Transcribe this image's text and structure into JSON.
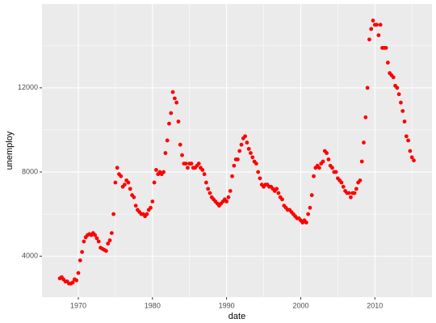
{
  "chart_data": {
    "type": "scatter",
    "x_label": "date",
    "y_label": "unemploy",
    "color": "#ff0000",
    "grid": true,
    "xlim": [
      1965.1,
      2017.7
    ],
    "ylim": [
      2052,
      15985
    ],
    "xticks": [
      1970,
      1980,
      1990,
      2000,
      2010
    ],
    "yticks": [
      4000,
      8000,
      12000
    ],
    "x": [
      1967.5,
      1967.75,
      1968,
      1968.25,
      1968.5,
      1968.75,
      1969,
      1969.25,
      1969.5,
      1969.75,
      1970,
      1970.25,
      1970.5,
      1970.75,
      1971,
      1971.25,
      1971.5,
      1971.75,
      1972,
      1972.25,
      1972.5,
      1972.75,
      1973,
      1973.25,
      1973.5,
      1973.75,
      1974,
      1974.25,
      1974.5,
      1974.75,
      1975,
      1975.25,
      1975.5,
      1975.75,
      1976,
      1976.25,
      1976.5,
      1976.75,
      1977,
      1977.25,
      1977.5,
      1977.75,
      1978,
      1978.25,
      1978.5,
      1978.75,
      1979,
      1979.25,
      1979.5,
      1979.75,
      1980,
      1980.25,
      1980.5,
      1980.75,
      1981,
      1981.25,
      1981.5,
      1981.75,
      1982,
      1982.25,
      1982.5,
      1982.75,
      1983,
      1983.25,
      1983.5,
      1983.75,
      1984,
      1984.25,
      1984.5,
      1984.75,
      1985,
      1985.25,
      1985.5,
      1985.75,
      1986,
      1986.25,
      1986.5,
      1986.75,
      1987,
      1987.25,
      1987.5,
      1987.75,
      1988,
      1988.25,
      1988.5,
      1988.75,
      1989,
      1989.25,
      1989.5,
      1989.75,
      1990,
      1990.25,
      1990.5,
      1990.75,
      1991,
      1991.25,
      1991.5,
      1991.75,
      1992,
      1992.25,
      1992.5,
      1992.75,
      1993,
      1993.25,
      1993.5,
      1993.75,
      1994,
      1994.25,
      1994.5,
      1994.75,
      1995,
      1995.25,
      1995.5,
      1995.75,
      1996,
      1996.25,
      1996.5,
      1996.75,
      1997,
      1997.25,
      1997.5,
      1997.75,
      1998,
      1998.25,
      1998.5,
      1998.75,
      1999,
      1999.25,
      1999.5,
      1999.75,
      2000,
      2000.25,
      2000.5,
      2000.75,
      2001,
      2001.25,
      2001.5,
      2001.75,
      2002,
      2002.25,
      2002.5,
      2002.75,
      2003,
      2003.25,
      2003.5,
      2003.75,
      2004,
      2004.25,
      2004.5,
      2004.75,
      2005,
      2005.25,
      2005.5,
      2005.75,
      2006,
      2006.25,
      2006.5,
      2006.75,
      2007,
      2007.25,
      2007.5,
      2007.75,
      2008,
      2008.25,
      2008.5,
      2008.75,
      2009,
      2009.25,
      2009.5,
      2009.75,
      2010,
      2010.25,
      2010.5,
      2010.75,
      2011,
      2011.25,
      2011.5,
      2011.75,
      2012,
      2012.25,
      2012.5,
      2012.75,
      2013,
      2013.25,
      2013.5,
      2013.75,
      2014,
      2014.25,
      2014.5,
      2014.75,
      2015,
      2015.25
    ],
    "values": [
      2945,
      3000,
      2900,
      2800,
      2800,
      2700,
      2700,
      2750,
      2900,
      2850,
      3200,
      3800,
      4200,
      4700,
      4900,
      5000,
      5050,
      5000,
      5100,
      5000,
      4850,
      4700,
      4400,
      4350,
      4300,
      4250,
      4600,
      4750,
      5100,
      6000,
      7500,
      8200,
      7900,
      7800,
      7300,
      7400,
      7600,
      7500,
      7200,
      6900,
      6800,
      6400,
      6200,
      6100,
      6000,
      6000,
      5900,
      6000,
      6200,
      6300,
      6600,
      7500,
      8100,
      7900,
      8000,
      7900,
      8000,
      8900,
      9500,
      10300,
      10800,
      11800,
      11500,
      11300,
      10400,
      9300,
      8800,
      8400,
      8400,
      8200,
      8400,
      8400,
      8200,
      8200,
      8300,
      8400,
      8200,
      8100,
      7900,
      7500,
      7200,
      7000,
      6800,
      6700,
      6600,
      6500,
      6400,
      6500,
      6600,
      6700,
      6600,
      6800,
      7100,
      7800,
      8300,
      8600,
      8600,
      9000,
      9300,
      9600,
      9700,
      9400,
      9100,
      8900,
      8700,
      8500,
      8400,
      8000,
      7700,
      7400,
      7300,
      7400,
      7400,
      7300,
      7300,
      7200,
      7100,
      7200,
      7000,
      6800,
      6700,
      6400,
      6300,
      6200,
      6200,
      6100,
      6000,
      5900,
      5800,
      5800,
      5700,
      5600,
      5700,
      5600,
      6000,
      6300,
      6900,
      7800,
      8200,
      8300,
      8200,
      8400,
      8500,
      9000,
      8900,
      8600,
      8300,
      8200,
      8000,
      8000,
      7700,
      7600,
      7500,
      7300,
      7100,
      7000,
      7000,
      6800,
      7000,
      7000,
      7200,
      7500,
      7600,
      8500,
      9400,
      10600,
      12000,
      14300,
      14800,
      15200,
      15000,
      15000,
      14500,
      15000,
      13900,
      13900,
      13900,
      13200,
      12700,
      12600,
      12500,
      12100,
      12000,
      11700,
      11300,
      10900,
      10400,
      9700,
      9500,
      9000,
      8700,
      8550
    ]
  }
}
